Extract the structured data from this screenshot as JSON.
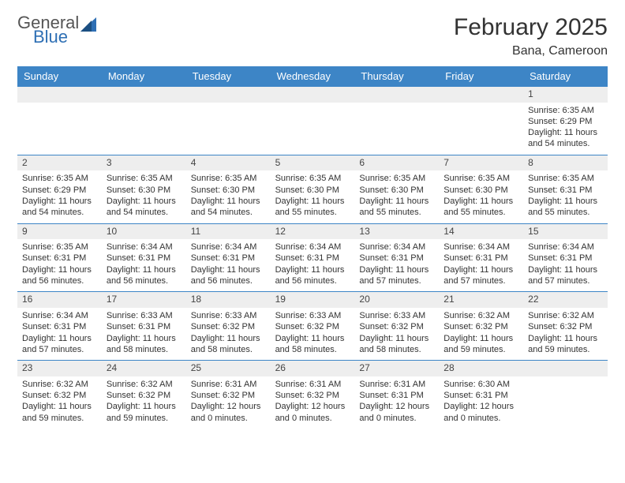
{
  "logo": {
    "line1": "General",
    "line2": "Blue"
  },
  "title": "February 2025",
  "subtitle": "Bana, Cameroon",
  "colors": {
    "header_bg": "#3d85c6",
    "header_text": "#ffffff",
    "row_divider": "#3d85c6",
    "daynum_bg": "#eeeeee",
    "logo_top": "#555555",
    "logo_bottom": "#2e6fb4",
    "page_bg": "#ffffff",
    "text": "#333333"
  },
  "weekdays": [
    "Sunday",
    "Monday",
    "Tuesday",
    "Wednesday",
    "Thursday",
    "Friday",
    "Saturday"
  ],
  "weeks": [
    [
      {
        "day": "",
        "sunrise": "",
        "sunset": "",
        "day_h": "",
        "day_m": ""
      },
      {
        "day": "",
        "sunrise": "",
        "sunset": "",
        "day_h": "",
        "day_m": ""
      },
      {
        "day": "",
        "sunrise": "",
        "sunset": "",
        "day_h": "",
        "day_m": ""
      },
      {
        "day": "",
        "sunrise": "",
        "sunset": "",
        "day_h": "",
        "day_m": ""
      },
      {
        "day": "",
        "sunrise": "",
        "sunset": "",
        "day_h": "",
        "day_m": ""
      },
      {
        "day": "",
        "sunrise": "",
        "sunset": "",
        "day_h": "",
        "day_m": ""
      },
      {
        "day": "1",
        "sunrise": "6:35 AM",
        "sunset": "6:29 PM",
        "day_h": "11",
        "day_m": "54"
      }
    ],
    [
      {
        "day": "2",
        "sunrise": "6:35 AM",
        "sunset": "6:29 PM",
        "day_h": "11",
        "day_m": "54"
      },
      {
        "day": "3",
        "sunrise": "6:35 AM",
        "sunset": "6:30 PM",
        "day_h": "11",
        "day_m": "54"
      },
      {
        "day": "4",
        "sunrise": "6:35 AM",
        "sunset": "6:30 PM",
        "day_h": "11",
        "day_m": "54"
      },
      {
        "day": "5",
        "sunrise": "6:35 AM",
        "sunset": "6:30 PM",
        "day_h": "11",
        "day_m": "55"
      },
      {
        "day": "6",
        "sunrise": "6:35 AM",
        "sunset": "6:30 PM",
        "day_h": "11",
        "day_m": "55"
      },
      {
        "day": "7",
        "sunrise": "6:35 AM",
        "sunset": "6:30 PM",
        "day_h": "11",
        "day_m": "55"
      },
      {
        "day": "8",
        "sunrise": "6:35 AM",
        "sunset": "6:31 PM",
        "day_h": "11",
        "day_m": "55"
      }
    ],
    [
      {
        "day": "9",
        "sunrise": "6:35 AM",
        "sunset": "6:31 PM",
        "day_h": "11",
        "day_m": "56"
      },
      {
        "day": "10",
        "sunrise": "6:34 AM",
        "sunset": "6:31 PM",
        "day_h": "11",
        "day_m": "56"
      },
      {
        "day": "11",
        "sunrise": "6:34 AM",
        "sunset": "6:31 PM",
        "day_h": "11",
        "day_m": "56"
      },
      {
        "day": "12",
        "sunrise": "6:34 AM",
        "sunset": "6:31 PM",
        "day_h": "11",
        "day_m": "56"
      },
      {
        "day": "13",
        "sunrise": "6:34 AM",
        "sunset": "6:31 PM",
        "day_h": "11",
        "day_m": "57"
      },
      {
        "day": "14",
        "sunrise": "6:34 AM",
        "sunset": "6:31 PM",
        "day_h": "11",
        "day_m": "57"
      },
      {
        "day": "15",
        "sunrise": "6:34 AM",
        "sunset": "6:31 PM",
        "day_h": "11",
        "day_m": "57"
      }
    ],
    [
      {
        "day": "16",
        "sunrise": "6:34 AM",
        "sunset": "6:31 PM",
        "day_h": "11",
        "day_m": "57"
      },
      {
        "day": "17",
        "sunrise": "6:33 AM",
        "sunset": "6:31 PM",
        "day_h": "11",
        "day_m": "58"
      },
      {
        "day": "18",
        "sunrise": "6:33 AM",
        "sunset": "6:32 PM",
        "day_h": "11",
        "day_m": "58"
      },
      {
        "day": "19",
        "sunrise": "6:33 AM",
        "sunset": "6:32 PM",
        "day_h": "11",
        "day_m": "58"
      },
      {
        "day": "20",
        "sunrise": "6:33 AM",
        "sunset": "6:32 PM",
        "day_h": "11",
        "day_m": "58"
      },
      {
        "day": "21",
        "sunrise": "6:32 AM",
        "sunset": "6:32 PM",
        "day_h": "11",
        "day_m": "59"
      },
      {
        "day": "22",
        "sunrise": "6:32 AM",
        "sunset": "6:32 PM",
        "day_h": "11",
        "day_m": "59"
      }
    ],
    [
      {
        "day": "23",
        "sunrise": "6:32 AM",
        "sunset": "6:32 PM",
        "day_h": "11",
        "day_m": "59"
      },
      {
        "day": "24",
        "sunrise": "6:32 AM",
        "sunset": "6:32 PM",
        "day_h": "11",
        "day_m": "59"
      },
      {
        "day": "25",
        "sunrise": "6:31 AM",
        "sunset": "6:32 PM",
        "day_h": "12",
        "day_m": "0"
      },
      {
        "day": "26",
        "sunrise": "6:31 AM",
        "sunset": "6:32 PM",
        "day_h": "12",
        "day_m": "0"
      },
      {
        "day": "27",
        "sunrise": "6:31 AM",
        "sunset": "6:31 PM",
        "day_h": "12",
        "day_m": "0"
      },
      {
        "day": "28",
        "sunrise": "6:30 AM",
        "sunset": "6:31 PM",
        "day_h": "12",
        "day_m": "0"
      },
      {
        "day": "",
        "sunrise": "",
        "sunset": "",
        "day_h": "",
        "day_m": ""
      }
    ]
  ],
  "labels": {
    "sunrise": "Sunrise:",
    "sunset": "Sunset:",
    "daylight_prefix": "Daylight:",
    "hours_word": "hours",
    "and_word": "and",
    "minutes_word": "minutes."
  }
}
